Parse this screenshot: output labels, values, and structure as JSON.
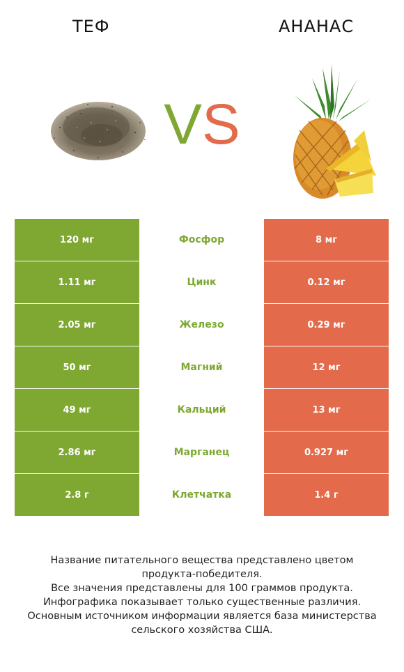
{
  "header": {
    "left_title": "ТЕФ",
    "right_title": "АНАНАС",
    "vs_v": "V",
    "vs_s": "S"
  },
  "colors": {
    "winner_left": "#7ea832",
    "winner_right": "#e36a4b"
  },
  "images": {
    "left": "teff-grain-pile",
    "right": "pineapple-with-slices"
  },
  "rows": [
    {
      "left": "120 мг",
      "nutrient": "Фосфор",
      "right": "8 мг"
    },
    {
      "left": "1.11 мг",
      "nutrient": "Цинк",
      "right": "0.12 мг"
    },
    {
      "left": "2.05 мг",
      "nutrient": "Железо",
      "right": "0.29 мг"
    },
    {
      "left": "50 мг",
      "nutrient": "Магний",
      "right": "12 мг"
    },
    {
      "left": "49 мг",
      "nutrient": "Кальций",
      "right": "13 мг"
    },
    {
      "left": "2.86 мг",
      "nutrient": "Марганец",
      "right": "0.927 мг"
    },
    {
      "left": "2.8 г",
      "nutrient": "Клетчатка",
      "right": "1.4 г"
    }
  ],
  "footer": {
    "line1": "Название питательного вещества представлено цветом",
    "line2": "продукта-победителя.",
    "line3": "Все значения представлены для 100 граммов продукта.",
    "line4": "Инфографика показывает только существенные различия.",
    "line5": "Основным источником информации является база министерства",
    "line6": "сельского хозяйства США."
  }
}
